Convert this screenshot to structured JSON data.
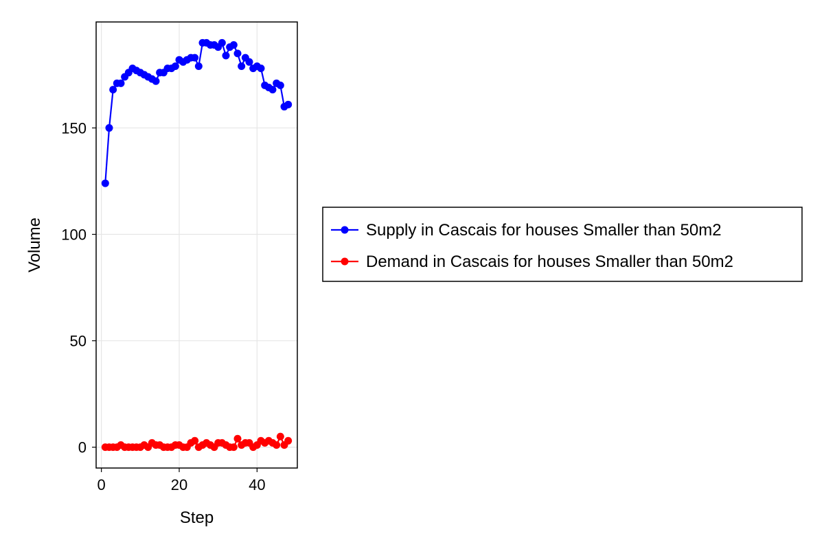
{
  "chart_data": {
    "type": "line",
    "xlabel": "Step",
    "ylabel": "Volume",
    "xlim": [
      -1.35,
      50.35
    ],
    "ylim": [
      -9.8,
      199.8
    ],
    "xticks": [
      0,
      20,
      40
    ],
    "yticks": [
      0,
      50,
      100,
      150
    ],
    "grid": true,
    "legend_position": "right",
    "series": [
      {
        "name": "Supply in Cascais for houses Smaller than 50m2",
        "color": "#0000ff",
        "marker": "circle",
        "x": [
          1,
          2,
          3,
          4,
          5,
          6,
          7,
          8,
          9,
          10,
          11,
          12,
          13,
          14,
          15,
          16,
          17,
          18,
          19,
          20,
          21,
          22,
          23,
          24,
          25,
          26,
          27,
          28,
          29,
          30,
          31,
          32,
          33,
          34,
          35,
          36,
          37,
          38,
          39,
          40,
          41,
          42,
          43,
          44,
          45,
          46,
          47,
          48
        ],
        "y": [
          124,
          150,
          168,
          171,
          171,
          174,
          176,
          178,
          177,
          176,
          175,
          174,
          173,
          172,
          176,
          176,
          178,
          178,
          179,
          182,
          181,
          182,
          183,
          183,
          179,
          190,
          190,
          189,
          189,
          188,
          190,
          184,
          188,
          189,
          185,
          179,
          183,
          181,
          178,
          179,
          178,
          170,
          169,
          168,
          171,
          170,
          160,
          161
        ]
      },
      {
        "name": "Demand in Cascais for houses Smaller than 50m2",
        "color": "#ff0000",
        "marker": "circle",
        "x": [
          1,
          2,
          3,
          4,
          5,
          6,
          7,
          8,
          9,
          10,
          11,
          12,
          13,
          14,
          15,
          16,
          17,
          18,
          19,
          20,
          21,
          22,
          23,
          24,
          25,
          26,
          27,
          28,
          29,
          30,
          31,
          32,
          33,
          34,
          35,
          36,
          37,
          38,
          39,
          40,
          41,
          42,
          43,
          44,
          45,
          46,
          47,
          48
        ],
        "y": [
          0,
          0,
          0,
          0,
          1,
          0,
          0,
          0,
          0,
          0,
          1,
          0,
          2,
          1,
          1,
          0,
          0,
          0,
          1,
          1,
          0,
          0,
          2,
          3,
          0,
          1,
          2,
          1,
          0,
          2,
          2,
          1,
          0,
          0,
          4,
          1,
          2,
          2,
          0,
          1,
          3,
          2,
          3,
          2,
          1,
          5,
          1,
          3
        ]
      }
    ]
  }
}
